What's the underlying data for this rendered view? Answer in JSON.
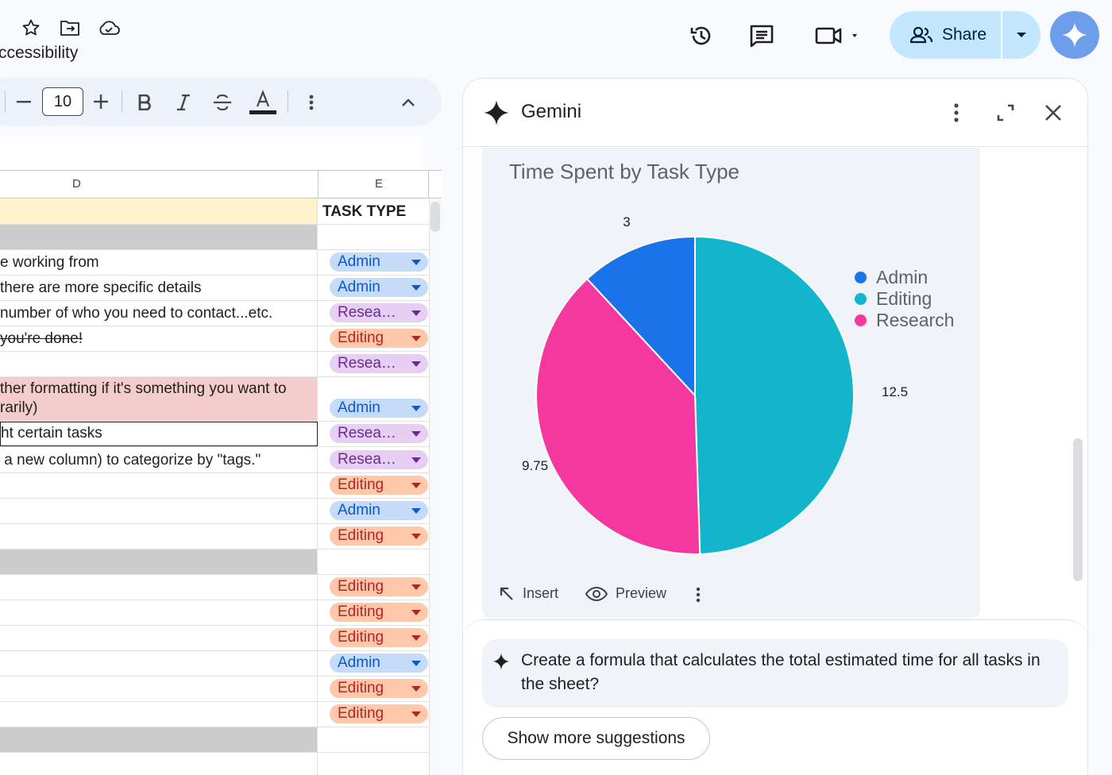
{
  "top_bar": {
    "menu_partial": "ccessibility",
    "share_label": "Share"
  },
  "toolbar": {
    "font_size": "10"
  },
  "sheet": {
    "columns": [
      "D",
      "E"
    ],
    "header_e": "TASK TYPE",
    "rows": [
      {
        "d": "e working from",
        "e": "Admin",
        "type": "admin"
      },
      {
        "d": "there are more specific details",
        "e": "Admin",
        "type": "admin"
      },
      {
        "d": "number of who you need to contact...etc.",
        "e": "Resea…",
        "type": "research"
      },
      {
        "d": "you're done!",
        "e": "Editing",
        "type": "editing"
      },
      {
        "d": "",
        "e": "Resea…",
        "type": "research"
      },
      {
        "d": "ther formatting if it's something you want to rarily)",
        "e": "Admin",
        "type": "admin"
      },
      {
        "d": "ht certain tasks",
        "e": "Resea…",
        "type": "research"
      },
      {
        "d": " a new column) to categorize by \"tags.\"",
        "e": "Resea…",
        "type": "research"
      },
      {
        "d": "",
        "e": "Editing",
        "type": "editing"
      },
      {
        "d": "",
        "e": "Admin",
        "type": "admin"
      },
      {
        "d": "",
        "e": "Editing",
        "type": "editing"
      },
      {
        "d": "",
        "e": "Editing",
        "type": "editing"
      },
      {
        "d": "",
        "e": "Editing",
        "type": "editing"
      },
      {
        "d": "",
        "e": "Editing",
        "type": "editing"
      },
      {
        "d": "",
        "e": "Admin",
        "type": "admin"
      },
      {
        "d": "",
        "e": "Editing",
        "type": "editing"
      },
      {
        "d": "",
        "e": "Editing",
        "type": "editing"
      }
    ]
  },
  "gemini": {
    "title": "Gemini",
    "insert_label": "Insert",
    "preview_label": "Preview",
    "suggestion": "Create a formula that calculates the total estimated time for all tasks in the sheet?",
    "more_suggestions": "Show more suggestions"
  },
  "chart_data": {
    "type": "pie",
    "title": "Time Spent by Task Type",
    "categories": [
      "Admin",
      "Editing",
      "Research"
    ],
    "values": [
      3,
      12.5,
      9.75
    ],
    "colors": [
      "#1a73e8",
      "#12b5cb",
      "#f538a0"
    ],
    "legend_position": "right"
  },
  "colors": {
    "share_bg": "#c2e7ff",
    "header_yellow": "#fff2cc",
    "section_gray": "#cccccc",
    "highlight_pink": "#f4cccc"
  }
}
